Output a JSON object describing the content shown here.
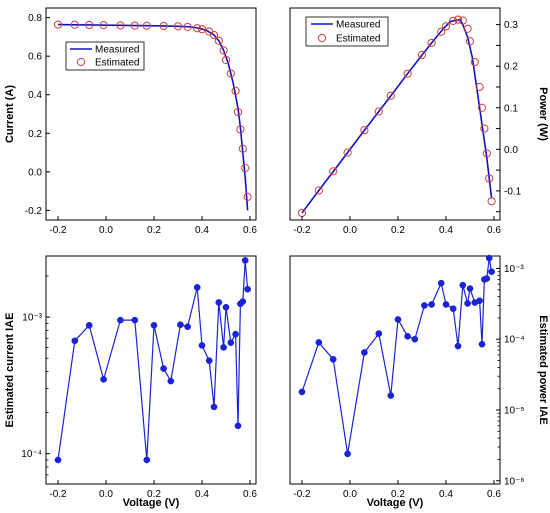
{
  "colors": {
    "measured_line": "#1010c8",
    "estimated_marker": "#d04040",
    "iae_series": "#1a24d6"
  },
  "chart_data": [
    {
      "id": "current",
      "type": "line",
      "ylabel": "Current (A)",
      "xlabel": "",
      "xlim": [
        -0.25,
        0.625
      ],
      "ylim": [
        -0.25,
        0.85
      ],
      "xticks": [
        "-0.2",
        "0.0",
        "0.2",
        "0.4",
        "0.6"
      ],
      "yticks": [
        "-0.2",
        "0.0",
        "0.2",
        "0.4",
        "0.6",
        "0.8"
      ],
      "y_axis_side": "left",
      "legend": "upper-left",
      "series": [
        {
          "name": "Measured",
          "style": "line",
          "x": [
            -0.2,
            -0.13,
            -0.06,
            0.0,
            0.06,
            0.12,
            0.18,
            0.24,
            0.3,
            0.35,
            0.39,
            0.42,
            0.45,
            0.47,
            0.49,
            0.51,
            0.53,
            0.55,
            0.56,
            0.57,
            0.58,
            0.59
          ],
          "y": [
            0.764,
            0.763,
            0.762,
            0.761,
            0.76,
            0.759,
            0.758,
            0.757,
            0.755,
            0.752,
            0.745,
            0.733,
            0.71,
            0.68,
            0.63,
            0.56,
            0.46,
            0.33,
            0.23,
            0.1,
            -0.03,
            -0.2
          ]
        },
        {
          "name": "Estimated",
          "style": "markers",
          "x": [
            -0.2,
            -0.13,
            -0.07,
            -0.01,
            0.06,
            0.12,
            0.17,
            0.24,
            0.3,
            0.34,
            0.38,
            0.4,
            0.43,
            0.45,
            0.47,
            0.49,
            0.5,
            0.52,
            0.54,
            0.55,
            0.56,
            0.57,
            0.58,
            0.59
          ],
          "y": [
            0.764,
            0.763,
            0.762,
            0.761,
            0.76,
            0.759,
            0.758,
            0.757,
            0.755,
            0.752,
            0.745,
            0.74,
            0.728,
            0.71,
            0.68,
            0.63,
            0.58,
            0.51,
            0.42,
            0.31,
            0.22,
            0.12,
            0.02,
            -0.13
          ]
        }
      ]
    },
    {
      "id": "power",
      "type": "line",
      "ylabel": "Power (W)",
      "xlabel": "",
      "xlim": [
        -0.25,
        0.625
      ],
      "ylim": [
        -0.17,
        0.34
      ],
      "xticks": [
        "-0.2",
        "0.0",
        "0.2",
        "0.4",
        "0.6"
      ],
      "yticks": [
        "-0.15",
        "-0.10",
        "-0.05",
        "0.00",
        "0.05",
        "0.10",
        "0.15",
        "0.20",
        "0.25",
        "0.30"
      ],
      "ytick_labels": [
        "",
        "-0.1",
        "",
        "0.0",
        "",
        "0.1",
        "",
        "0.2",
        "",
        "0.3"
      ],
      "y_axis_side": "right",
      "legend": "top",
      "series": [
        {
          "name": "Measured",
          "style": "line",
          "x": [
            -0.2,
            -0.13,
            -0.06,
            0.0,
            0.06,
            0.12,
            0.18,
            0.24,
            0.3,
            0.35,
            0.39,
            0.42,
            0.44,
            0.46,
            0.47,
            0.49,
            0.51,
            0.53,
            0.55,
            0.57,
            0.59
          ],
          "y": [
            -0.153,
            -0.099,
            -0.046,
            0.0,
            0.046,
            0.091,
            0.136,
            0.182,
            0.227,
            0.263,
            0.291,
            0.308,
            0.31,
            0.312,
            0.3,
            0.27,
            0.22,
            0.14,
            0.06,
            -0.02,
            -0.118
          ]
        },
        {
          "name": "Estimated",
          "style": "markers",
          "x": [
            -0.2,
            -0.13,
            -0.07,
            -0.01,
            0.06,
            0.12,
            0.17,
            0.24,
            0.3,
            0.34,
            0.38,
            0.4,
            0.43,
            0.45,
            0.47,
            0.49,
            0.5,
            0.52,
            0.54,
            0.55,
            0.56,
            0.57,
            0.58,
            0.59
          ],
          "y": [
            -0.153,
            -0.099,
            -0.053,
            -0.008,
            0.046,
            0.091,
            0.129,
            0.182,
            0.227,
            0.256,
            0.283,
            0.296,
            0.309,
            0.312,
            0.31,
            0.29,
            0.26,
            0.21,
            0.15,
            0.1,
            0.05,
            -0.01,
            -0.07,
            -0.125
          ]
        }
      ]
    },
    {
      "id": "current-iae",
      "type": "line",
      "ylabel": "Estimated current IAE",
      "xlabel": "Voltage (V)",
      "yscale": "log",
      "xlim": [
        -0.25,
        0.625
      ],
      "ylim": [
        6e-05,
        0.0028
      ],
      "xticks": [
        "-0.2",
        "0.0",
        "0.2",
        "0.4",
        "0.6"
      ],
      "ytick_values": [
        0.0001,
        0.001
      ],
      "ytick_labels": [
        "10⁻⁴",
        "10⁻³"
      ],
      "y_axis_side": "left",
      "series": [
        {
          "name": "",
          "style": "line-markers",
          "x": [
            -0.2,
            -0.13,
            -0.07,
            -0.01,
            0.06,
            0.12,
            0.17,
            0.2,
            0.24,
            0.27,
            0.31,
            0.34,
            0.38,
            0.4,
            0.43,
            0.45,
            0.47,
            0.49,
            0.5,
            0.52,
            0.54,
            0.55,
            0.56,
            0.57,
            0.58,
            0.59
          ],
          "y": [
            9e-05,
            0.00067,
            0.00087,
            0.00035,
            0.00095,
            0.00095,
            9e-05,
            0.00087,
            0.00042,
            0.00034,
            0.00088,
            0.00085,
            0.00165,
            0.00062,
            0.00048,
            0.00022,
            0.00128,
            0.0006,
            0.00118,
            0.00065,
            0.00075,
            0.00016,
            0.00125,
            0.0013,
            0.0026,
            0.0016
          ]
        }
      ]
    },
    {
      "id": "power-iae",
      "type": "line",
      "ylabel": "Estimated power IAE",
      "xlabel": "Voltage (V)",
      "yscale": "log",
      "xlim": [
        -0.25,
        0.625
      ],
      "ylim": [
        9e-07,
        0.0015
      ],
      "xticks": [
        "-0.2",
        "0.0",
        "0.2",
        "0.4",
        "0.6"
      ],
      "ytick_values": [
        1e-06,
        1e-05,
        0.0001,
        0.001
      ],
      "ytick_labels": [
        "10⁻⁶",
        "10⁻⁵",
        "10⁻⁴",
        "10⁻³"
      ],
      "y_axis_side": "right",
      "series": [
        {
          "name": "",
          "style": "line-markers",
          "x": [
            -0.2,
            -0.13,
            -0.07,
            -0.01,
            0.06,
            0.12,
            0.17,
            0.2,
            0.24,
            0.27,
            0.31,
            0.34,
            0.38,
            0.4,
            0.43,
            0.45,
            0.47,
            0.49,
            0.5,
            0.52,
            0.54,
            0.55,
            0.56,
            0.57,
            0.58,
            0.59
          ],
          "y": [
            1.8e-05,
            9e-05,
            5.2e-05,
            2.4e-06,
            6.5e-05,
            0.00012,
            1.6e-05,
            0.00019,
            0.00011,
            0.0001,
            0.0003,
            0.00031,
            0.00062,
            0.00031,
            0.00027,
            8e-05,
            0.00058,
            0.00032,
            0.00052,
            0.00033,
            0.00035,
            8.5e-05,
            0.0007,
            0.00072,
            0.0014,
            0.0009
          ]
        }
      ]
    }
  ]
}
